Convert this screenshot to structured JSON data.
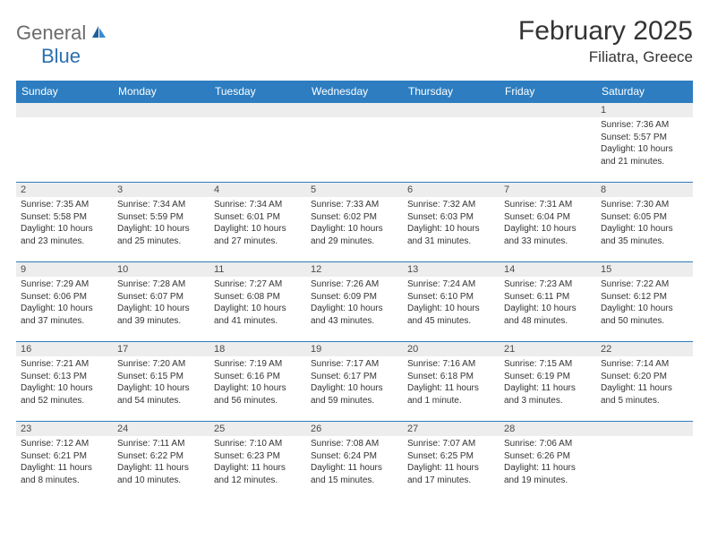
{
  "brand": {
    "name1": "General",
    "name2": "Blue"
  },
  "title": "February 2025",
  "location": "Filiatra, Greece",
  "weekdays": [
    "Sunday",
    "Monday",
    "Tuesday",
    "Wednesday",
    "Thursday",
    "Friday",
    "Saturday"
  ],
  "colors": {
    "header_bg": "#2d7dc0",
    "header_text": "#ffffff",
    "row_border": "#2d7dc0",
    "daynum_bg": "#ededed",
    "text": "#333333",
    "logo_gray": "#6b6b6b",
    "logo_blue": "#2d6fb0"
  },
  "weeks": [
    [
      {
        "n": "",
        "sunrise": "",
        "sunset": "",
        "daylight": ""
      },
      {
        "n": "",
        "sunrise": "",
        "sunset": "",
        "daylight": ""
      },
      {
        "n": "",
        "sunrise": "",
        "sunset": "",
        "daylight": ""
      },
      {
        "n": "",
        "sunrise": "",
        "sunset": "",
        "daylight": ""
      },
      {
        "n": "",
        "sunrise": "",
        "sunset": "",
        "daylight": ""
      },
      {
        "n": "",
        "sunrise": "",
        "sunset": "",
        "daylight": ""
      },
      {
        "n": "1",
        "sunrise": "Sunrise: 7:36 AM",
        "sunset": "Sunset: 5:57 PM",
        "daylight": "Daylight: 10 hours and 21 minutes."
      }
    ],
    [
      {
        "n": "2",
        "sunrise": "Sunrise: 7:35 AM",
        "sunset": "Sunset: 5:58 PM",
        "daylight": "Daylight: 10 hours and 23 minutes."
      },
      {
        "n": "3",
        "sunrise": "Sunrise: 7:34 AM",
        "sunset": "Sunset: 5:59 PM",
        "daylight": "Daylight: 10 hours and 25 minutes."
      },
      {
        "n": "4",
        "sunrise": "Sunrise: 7:34 AM",
        "sunset": "Sunset: 6:01 PM",
        "daylight": "Daylight: 10 hours and 27 minutes."
      },
      {
        "n": "5",
        "sunrise": "Sunrise: 7:33 AM",
        "sunset": "Sunset: 6:02 PM",
        "daylight": "Daylight: 10 hours and 29 minutes."
      },
      {
        "n": "6",
        "sunrise": "Sunrise: 7:32 AM",
        "sunset": "Sunset: 6:03 PM",
        "daylight": "Daylight: 10 hours and 31 minutes."
      },
      {
        "n": "7",
        "sunrise": "Sunrise: 7:31 AM",
        "sunset": "Sunset: 6:04 PM",
        "daylight": "Daylight: 10 hours and 33 minutes."
      },
      {
        "n": "8",
        "sunrise": "Sunrise: 7:30 AM",
        "sunset": "Sunset: 6:05 PM",
        "daylight": "Daylight: 10 hours and 35 minutes."
      }
    ],
    [
      {
        "n": "9",
        "sunrise": "Sunrise: 7:29 AM",
        "sunset": "Sunset: 6:06 PM",
        "daylight": "Daylight: 10 hours and 37 minutes."
      },
      {
        "n": "10",
        "sunrise": "Sunrise: 7:28 AM",
        "sunset": "Sunset: 6:07 PM",
        "daylight": "Daylight: 10 hours and 39 minutes."
      },
      {
        "n": "11",
        "sunrise": "Sunrise: 7:27 AM",
        "sunset": "Sunset: 6:08 PM",
        "daylight": "Daylight: 10 hours and 41 minutes."
      },
      {
        "n": "12",
        "sunrise": "Sunrise: 7:26 AM",
        "sunset": "Sunset: 6:09 PM",
        "daylight": "Daylight: 10 hours and 43 minutes."
      },
      {
        "n": "13",
        "sunrise": "Sunrise: 7:24 AM",
        "sunset": "Sunset: 6:10 PM",
        "daylight": "Daylight: 10 hours and 45 minutes."
      },
      {
        "n": "14",
        "sunrise": "Sunrise: 7:23 AM",
        "sunset": "Sunset: 6:11 PM",
        "daylight": "Daylight: 10 hours and 48 minutes."
      },
      {
        "n": "15",
        "sunrise": "Sunrise: 7:22 AM",
        "sunset": "Sunset: 6:12 PM",
        "daylight": "Daylight: 10 hours and 50 minutes."
      }
    ],
    [
      {
        "n": "16",
        "sunrise": "Sunrise: 7:21 AM",
        "sunset": "Sunset: 6:13 PM",
        "daylight": "Daylight: 10 hours and 52 minutes."
      },
      {
        "n": "17",
        "sunrise": "Sunrise: 7:20 AM",
        "sunset": "Sunset: 6:15 PM",
        "daylight": "Daylight: 10 hours and 54 minutes."
      },
      {
        "n": "18",
        "sunrise": "Sunrise: 7:19 AM",
        "sunset": "Sunset: 6:16 PM",
        "daylight": "Daylight: 10 hours and 56 minutes."
      },
      {
        "n": "19",
        "sunrise": "Sunrise: 7:17 AM",
        "sunset": "Sunset: 6:17 PM",
        "daylight": "Daylight: 10 hours and 59 minutes."
      },
      {
        "n": "20",
        "sunrise": "Sunrise: 7:16 AM",
        "sunset": "Sunset: 6:18 PM",
        "daylight": "Daylight: 11 hours and 1 minute."
      },
      {
        "n": "21",
        "sunrise": "Sunrise: 7:15 AM",
        "sunset": "Sunset: 6:19 PM",
        "daylight": "Daylight: 11 hours and 3 minutes."
      },
      {
        "n": "22",
        "sunrise": "Sunrise: 7:14 AM",
        "sunset": "Sunset: 6:20 PM",
        "daylight": "Daylight: 11 hours and 5 minutes."
      }
    ],
    [
      {
        "n": "23",
        "sunrise": "Sunrise: 7:12 AM",
        "sunset": "Sunset: 6:21 PM",
        "daylight": "Daylight: 11 hours and 8 minutes."
      },
      {
        "n": "24",
        "sunrise": "Sunrise: 7:11 AM",
        "sunset": "Sunset: 6:22 PM",
        "daylight": "Daylight: 11 hours and 10 minutes."
      },
      {
        "n": "25",
        "sunrise": "Sunrise: 7:10 AM",
        "sunset": "Sunset: 6:23 PM",
        "daylight": "Daylight: 11 hours and 12 minutes."
      },
      {
        "n": "26",
        "sunrise": "Sunrise: 7:08 AM",
        "sunset": "Sunset: 6:24 PM",
        "daylight": "Daylight: 11 hours and 15 minutes."
      },
      {
        "n": "27",
        "sunrise": "Sunrise: 7:07 AM",
        "sunset": "Sunset: 6:25 PM",
        "daylight": "Daylight: 11 hours and 17 minutes."
      },
      {
        "n": "28",
        "sunrise": "Sunrise: 7:06 AM",
        "sunset": "Sunset: 6:26 PM",
        "daylight": "Daylight: 11 hours and 19 minutes."
      },
      {
        "n": "",
        "sunrise": "",
        "sunset": "",
        "daylight": ""
      }
    ]
  ]
}
